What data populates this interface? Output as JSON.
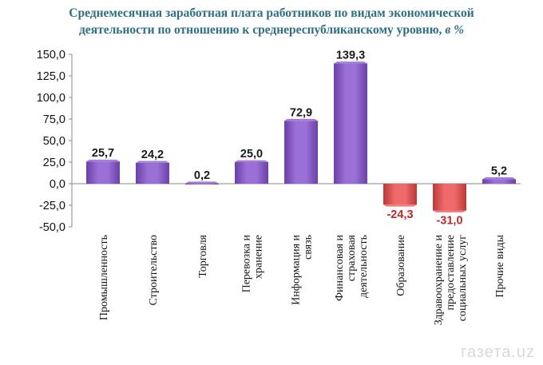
{
  "title": {
    "line1": "Среднемесячная заработная плата работников по видам экономической",
    "line2": "деятельности по отношению к среднереспубликанскому уровню,",
    "unit": "в %"
  },
  "watermark": "газета.uz",
  "chart_data": {
    "type": "bar",
    "categories": [
      [
        "Промышленность"
      ],
      [
        "Строительство"
      ],
      [
        "Торговля"
      ],
      [
        "Перевозка и",
        "хранение"
      ],
      [
        "Информация и",
        "связь"
      ],
      [
        "Финансовая и",
        "страховая",
        "деятельность"
      ],
      [
        "Образование"
      ],
      [
        "Здравоохранение и",
        "предоставление",
        "социальных услуг"
      ],
      [
        "Прочие виды"
      ]
    ],
    "values": [
      25.7,
      24.2,
      0.2,
      25.0,
      72.9,
      139.3,
      -24.3,
      -31.0,
      5.2
    ],
    "value_labels": [
      "25,7",
      "24,2",
      "0,2",
      "25,0",
      "72,9",
      "139,3",
      "-24,3",
      "-31,0",
      "5,2"
    ],
    "ylim": [
      -50,
      150
    ],
    "yticks": [
      150,
      125,
      100,
      75,
      50,
      25,
      0,
      -25,
      -50
    ],
    "ytick_labels": [
      "150,0",
      "125,0",
      "100,0",
      "75,0",
      "50,0",
      "25,0",
      "0,0",
      "-25,0",
      "-50,0"
    ],
    "grid": false,
    "colors": {
      "positive": "#9a6fd6",
      "positive_dark": "#6a41a8",
      "negative": "#f16a6a",
      "negative_dark": "#b73a3a",
      "positive_label": "#1a1a1a",
      "negative_label": "#c0282d"
    }
  }
}
